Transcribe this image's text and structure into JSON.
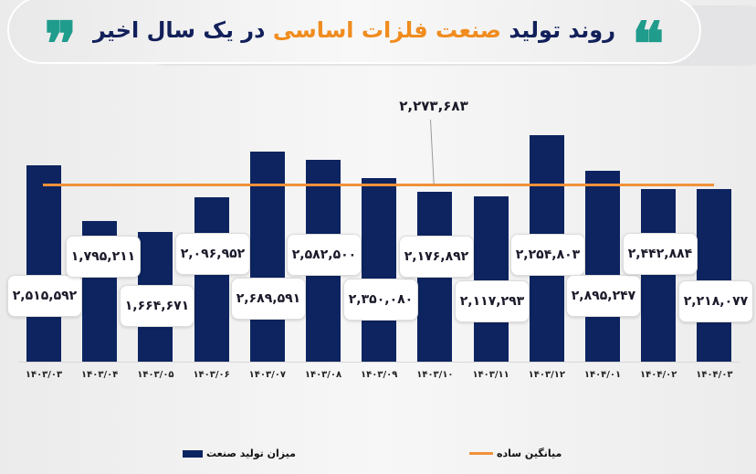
{
  "header": {
    "title_part1": "روند تولید",
    "title_highlight": "صنعت فلزات اساسی",
    "title_part2": "در یک سال اخیر",
    "open_quote": "❞",
    "close_quote": "❝",
    "accent_color": "#1f9c8c",
    "highlight_color": "#f08c1e",
    "title_color": "#12205a"
  },
  "chart_data": {
    "type": "bar",
    "title": "روند تولید صنعت فلزات اساسی در یک سال اخیر",
    "categories": [
      "۱۴۰۳/۰۳",
      "۱۴۰۳/۰۴",
      "۱۴۰۳/۰۵",
      "۱۴۰۳/۰۶",
      "۱۴۰۳/۰۷",
      "۱۴۰۳/۰۸",
      "۱۴۰۳/۰۹",
      "۱۴۰۳/۱۰",
      "۱۴۰۳/۱۱",
      "۱۴۰۳/۱۲",
      "۱۴۰۴/۰۱",
      "۱۴۰۴/۰۲",
      "۱۴۰۴/۰۳"
    ],
    "series": [
      {
        "name": "میزان تولید صنعت",
        "type": "bar",
        "color": "#0d2460",
        "values": [
          2515592,
          1795211,
          1664671,
          2096952,
          2689591,
          2582500,
          2350080,
          2176892,
          2117293,
          2254803,
          2895247,
          2442884,
          2218077
        ],
        "labels": [
          "۲,۵۱۵,۵۹۲",
          "۱,۷۹۵,۲۱۱",
          "۱,۶۶۴,۶۷۱",
          "۲,۰۹۶,۹۵۲",
          "۲,۶۸۹,۵۹۱",
          "۲,۵۸۲,۵۰۰",
          "۲,۳۵۰,۰۸۰",
          "۲,۱۷۶,۸۹۲",
          "۲,۱۱۷,۲۹۳",
          "۲,۲۵۴,۸۰۳",
          "۲,۸۹۵,۲۴۷",
          "۲,۴۴۲,۸۸۴",
          "۲,۲۱۸,۰۷۷"
        ]
      },
      {
        "name": "میانگین ساده",
        "type": "line",
        "color": "#f0913a",
        "value": 2273683,
        "label": "۲,۲۷۳,۶۸۳"
      }
    ],
    "xlabel": "",
    "ylabel": "",
    "grid": false,
    "legend_position": "bottom"
  },
  "legend": {
    "bar_label": "میزان تولید صنعت",
    "line_label": "میانگین ساده"
  }
}
